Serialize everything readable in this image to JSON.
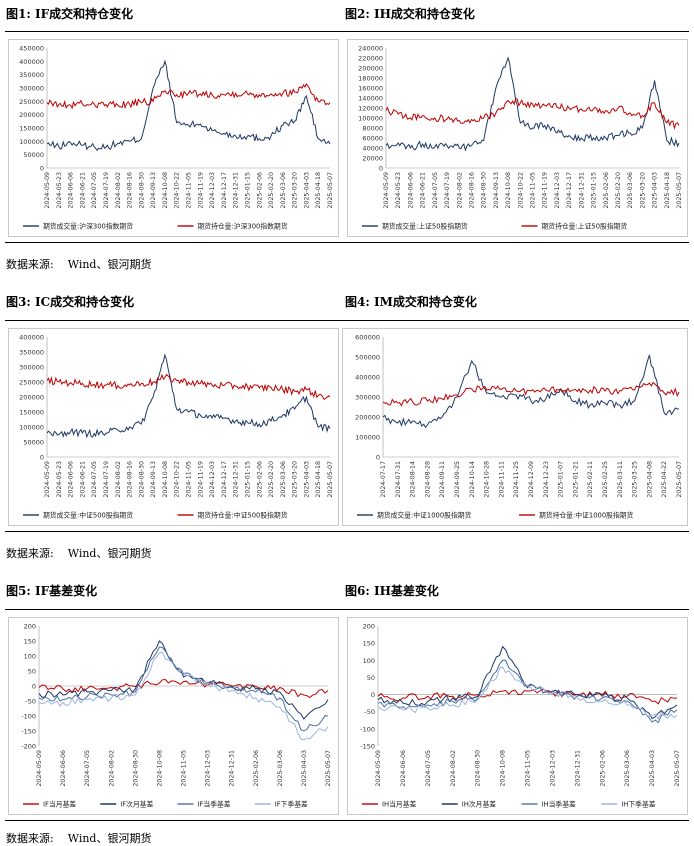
{
  "section1": {
    "fig1_title": "图1: IF成交和持仓变化",
    "fig2_title": "图2: IH成交和持仓变化",
    "source_label": "数据来源:",
    "source_value": "Wind、银河期货"
  },
  "section2": {
    "fig3_title": "图3: IC成交和持仓变化",
    "fig4_title": "图4: IM成交和持仓变化",
    "source_label": "数据来源:",
    "source_value": "Wind、银河期货"
  },
  "section3": {
    "fig5_title": "图5: IF基差变化",
    "fig6_title": "图6: IH基差变化",
    "source_label": "数据来源:",
    "source_value": "Wind、银河期货"
  },
  "chart_data": [
    {
      "id": "c1",
      "type": "line",
      "title": "",
      "ylim": [
        0,
        450000
      ],
      "yticks": [
        0,
        50000,
        100000,
        150000,
        200000,
        250000,
        300000,
        350000,
        400000,
        450000
      ],
      "x_labels": [
        "2024-05-09",
        "2024-05-23",
        "2024-06-06",
        "2024-06-21",
        "2024-07-05",
        "2024-07-19",
        "2024-08-02",
        "2024-08-16",
        "2024-08-30",
        "2024-09-13",
        "2024-10-08",
        "2024-10-22",
        "2024-11-05",
        "2024-11-19",
        "2024-12-03",
        "2024-12-17",
        "2024-12-31",
        "2025-01-15",
        "2025-02-06",
        "2025-02-20",
        "2025-03-06",
        "2025-03-20",
        "2025-04-03",
        "2025-04-18",
        "2025-05-07"
      ],
      "legend_position": "bottom",
      "colors": [
        "#1f3864",
        "#c00000"
      ],
      "series": [
        {
          "name": "期货成交量:沪深300指数期货",
          "values": [
            90000,
            80000,
            95000,
            85000,
            80000,
            78000,
            92000,
            100000,
            110000,
            300000,
            400000,
            170000,
            160000,
            165000,
            140000,
            130000,
            120000,
            120000,
            110000,
            120000,
            160000,
            175000,
            270000,
            110000,
            90000
          ]
        },
        {
          "name": "期货持仓量:沪深300指数期货",
          "values": [
            245000,
            238000,
            235000,
            240000,
            240000,
            238000,
            236000,
            240000,
            245000,
            250000,
            290000,
            275000,
            280000,
            278000,
            275000,
            275000,
            280000,
            278000,
            275000,
            278000,
            280000,
            285000,
            315000,
            250000,
            245000
          ]
        }
      ]
    },
    {
      "id": "c2",
      "type": "line",
      "title": "",
      "ylim": [
        0,
        240000
      ],
      "yticks": [
        0,
        20000,
        40000,
        60000,
        80000,
        100000,
        120000,
        140000,
        160000,
        180000,
        200000,
        220000,
        240000
      ],
      "x_labels": [
        "2024-05-09",
        "2024-05-23",
        "2024-06-06",
        "2024-06-21",
        "2024-07-05",
        "2024-07-19",
        "2024-08-02",
        "2024-08-16",
        "2024-08-30",
        "2024-09-13",
        "2024-10-08",
        "2024-10-22",
        "2024-11-05",
        "2024-11-19",
        "2024-12-03",
        "2024-12-17",
        "2024-12-31",
        "2025-01-15",
        "2025-02-06",
        "2025-02-20",
        "2025-03-06",
        "2025-03-20",
        "2025-04-03",
        "2025-04-18",
        "2025-05-07"
      ],
      "legend_position": "bottom",
      "colors": [
        "#1f3864",
        "#c00000"
      ],
      "series": [
        {
          "name": "期货成交量:上证50股指期货",
          "values": [
            45000,
            50000,
            40000,
            48000,
            42000,
            45000,
            40000,
            45000,
            55000,
            160000,
            220000,
            90000,
            80000,
            85000,
            70000,
            65000,
            60000,
            60000,
            60000,
            65000,
            70000,
            80000,
            175000,
            55000,
            50000
          ]
        },
        {
          "name": "期货持仓量:上证50股指期货",
          "values": [
            115000,
            108000,
            100000,
            105000,
            100000,
            98000,
            95000,
            97000,
            100000,
            110000,
            135000,
            130000,
            128000,
            125000,
            122000,
            120000,
            118000,
            118000,
            115000,
            120000,
            110000,
            105000,
            130000,
            90000,
            85000
          ]
        }
      ]
    },
    {
      "id": "c3",
      "type": "line",
      "title": "",
      "ylim": [
        0,
        400000
      ],
      "yticks": [
        0,
        50000,
        100000,
        150000,
        200000,
        250000,
        300000,
        350000,
        400000
      ],
      "x_labels": [
        "2024-05-09",
        "2024-05-23",
        "2024-06-06",
        "2024-06-21",
        "2024-07-05",
        "2024-07-19",
        "2024-08-02",
        "2024-08-16",
        "2024-08-30",
        "2024-09-13",
        "2024-10-08",
        "2024-10-22",
        "2024-11-05",
        "2024-11-19",
        "2024-12-03",
        "2024-12-17",
        "2024-12-31",
        "2025-01-15",
        "2025-02-06",
        "2025-02-20",
        "2025-03-06",
        "2025-03-20",
        "2025-04-03",
        "2025-04-18",
        "2025-05-07"
      ],
      "legend_position": "bottom",
      "colors": [
        "#1f3864",
        "#c00000"
      ],
      "series": [
        {
          "name": "期货成交量:中证500股指期货",
          "values": [
            80000,
            75000,
            85000,
            80000,
            78000,
            80000,
            90000,
            100000,
            110000,
            200000,
            340000,
            160000,
            150000,
            140000,
            130000,
            130000,
            120000,
            115000,
            110000,
            120000,
            140000,
            160000,
            200000,
            100000,
            95000
          ]
        },
        {
          "name": "期货持仓量:中证500股指期货",
          "values": [
            255000,
            250000,
            248000,
            245000,
            242000,
            240000,
            238000,
            240000,
            245000,
            250000,
            265000,
            255000,
            250000,
            245000,
            240000,
            238000,
            236000,
            235000,
            230000,
            232000,
            225000,
            220000,
            225000,
            205000,
            200000
          ]
        }
      ]
    },
    {
      "id": "c4",
      "type": "line",
      "title": "",
      "ylim": [
        0,
        600000
      ],
      "yticks": [
        0,
        100000,
        200000,
        300000,
        400000,
        500000,
        600000
      ],
      "x_labels": [
        "2024-07-17",
        "2024-07-31",
        "2024-08-14",
        "2024-08-28",
        "2024-09-11",
        "2024-09-25",
        "2024-10-14",
        "2024-10-28",
        "2024-11-11",
        "2024-11-25",
        "2024-12-09",
        "2024-12-23",
        "2025-01-07",
        "2025-01-21",
        "2025-02-11",
        "2025-02-25",
        "2025-03-11",
        "2025-03-25",
        "2025-04-08",
        "2025-04-22",
        "2025-05-07"
      ],
      "legend_position": "bottom",
      "colors": [
        "#1f3864",
        "#c00000"
      ],
      "series": [
        {
          "name": "期货成交量:中证1000股指期货",
          "values": [
            200000,
            170000,
            180000,
            160000,
            200000,
            300000,
            480000,
            320000,
            300000,
            310000,
            280000,
            290000,
            340000,
            280000,
            260000,
            270000,
            260000,
            280000,
            510000,
            220000,
            240000
          ]
        },
        {
          "name": "期货持仓量:中证1000股指期货",
          "values": [
            275000,
            270000,
            275000,
            280000,
            290000,
            310000,
            340000,
            335000,
            338000,
            332000,
            330000,
            335000,
            340000,
            338000,
            335000,
            330000,
            332000,
            335000,
            370000,
            320000,
            325000
          ]
        }
      ]
    },
    {
      "id": "c5",
      "type": "line",
      "title": "",
      "ylim": [
        -200,
        200
      ],
      "yticks": [
        -200,
        -150,
        -100,
        -50,
        0,
        50,
        100,
        150,
        200
      ],
      "x_labels": [
        "2024-05-09",
        "2024-06-06",
        "2024-07-05",
        "2024-08-02",
        "2024-08-30",
        "2024-10-08",
        "2024-11-05",
        "2024-12-03",
        "2024-12-31",
        "2025-02-06",
        "2025-03-06",
        "2025-04-03",
        "2025-05-07"
      ],
      "legend_position": "bottom",
      "colors": [
        "#c00000",
        "#1f3864",
        "#4a6fa5",
        "#9db4dc"
      ],
      "series": [
        {
          "name": "IF当月基差",
          "values": [
            -5,
            -10,
            -8,
            -5,
            -2,
            10,
            15,
            5,
            0,
            -2,
            -5,
            -30,
            -15
          ]
        },
        {
          "name": "IF次月基差",
          "values": [
            -25,
            -30,
            -20,
            -15,
            -10,
            150,
            30,
            10,
            0,
            -10,
            -20,
            -110,
            -45
          ]
        },
        {
          "name": "IF当季基差",
          "values": [
            -40,
            -45,
            -35,
            -30,
            -20,
            130,
            40,
            10,
            -5,
            -20,
            -40,
            -150,
            -100
          ]
        },
        {
          "name": "IF下季基差",
          "values": [
            -55,
            -55,
            -45,
            -40,
            -30,
            110,
            45,
            5,
            -15,
            -40,
            -70,
            -180,
            -135
          ]
        }
      ]
    },
    {
      "id": "c6",
      "type": "line",
      "title": "",
      "ylim": [
        -150,
        200
      ],
      "yticks": [
        -150,
        -100,
        -50,
        0,
        50,
        100,
        150,
        200
      ],
      "x_labels": [
        "2024-05-09",
        "2024-06-06",
        "2024-07-05",
        "2024-08-02",
        "2024-08-30",
        "2024-10-08",
        "2024-11-05",
        "2024-12-03",
        "2024-12-31",
        "2025-02-06",
        "2025-03-06",
        "2025-04-03",
        "2025-05-07"
      ],
      "legend_position": "bottom",
      "colors": [
        "#c00000",
        "#1f3864",
        "#4a6fa5",
        "#9db4dc"
      ],
      "series": [
        {
          "name": "IH当月基差",
          "values": [
            -5,
            -10,
            -5,
            -5,
            0,
            10,
            10,
            5,
            0,
            0,
            -5,
            -20,
            -10
          ]
        },
        {
          "name": "IH次月基差",
          "values": [
            -15,
            -25,
            -20,
            -10,
            -5,
            140,
            20,
            10,
            0,
            -5,
            -10,
            -70,
            -30
          ]
        },
        {
          "name": "IH当季基差",
          "values": [
            -25,
            -35,
            -30,
            -20,
            -10,
            100,
            25,
            10,
            -5,
            -10,
            -20,
            -80,
            -45
          ]
        },
        {
          "name": "IH下季基差",
          "values": [
            -35,
            -45,
            -40,
            -30,
            -15,
            80,
            25,
            5,
            -10,
            -20,
            -30,
            -60,
            -60
          ]
        }
      ]
    }
  ]
}
